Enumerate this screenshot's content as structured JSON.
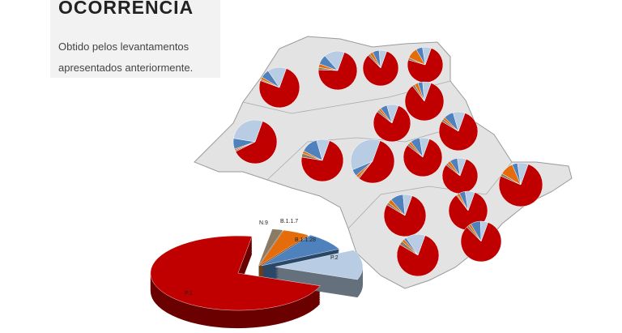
{
  "header": {
    "title": "OCORRÊNCIA",
    "description_lines": [
      "Obtido pelos levantamentos",
      "apresentados anteriormente."
    ]
  },
  "chart_data": [
    {
      "type": "pie",
      "categories": [
        "P.1",
        "N.9",
        "B.1.1.7",
        "B.1.1.28",
        "P.2"
      ],
      "values": [
        72,
        2,
        5,
        8,
        13
      ],
      "colors": [
        "#c00000",
        "#8c7b64",
        "#e46c0a",
        "#4f81bd",
        "#b8cce4"
      ]
    },
    {
      "type": "pie",
      "values": [
        70,
        2,
        3,
        8,
        17
      ]
    },
    {
      "type": "pie",
      "values": [
        82,
        2,
        3,
        6,
        7
      ]
    },
    {
      "type": "pie",
      "values": [
        74,
        2,
        10,
        6,
        8
      ]
    },
    {
      "type": "pie",
      "values": [
        75,
        1,
        2,
        7,
        15
      ]
    },
    {
      "type": "pie",
      "values": [
        84,
        2,
        3,
        4,
        7
      ]
    },
    {
      "type": "pie",
      "values": [
        80,
        2,
        2,
        6,
        10
      ]
    },
    {
      "type": "pie",
      "values": [
        78,
        2,
        2,
        8,
        10
      ]
    },
    {
      "type": "pie",
      "values": [
        62,
        1,
        1,
        8,
        28
      ]
    },
    {
      "type": "pie",
      "values": [
        72,
        3,
        2,
        13,
        10
      ]
    },
    {
      "type": "pie",
      "values": [
        55,
        1,
        2,
        5,
        37
      ]
    },
    {
      "type": "pie",
      "values": [
        80,
        2,
        2,
        8,
        8
      ]
    },
    {
      "type": "pie",
      "values": [
        80,
        2,
        3,
        7,
        8
      ]
    },
    {
      "type": "pie",
      "values": [
        76,
        2,
        10,
        4,
        8
      ]
    },
    {
      "type": "pie",
      "values": [
        84,
        1,
        2,
        5,
        8
      ]
    },
    {
      "type": "pie",
      "values": [
        78,
        2,
        3,
        10,
        7
      ]
    },
    {
      "type": "pie",
      "values": [
        82,
        2,
        2,
        8,
        6
      ]
    },
    {
      "type": "pie",
      "values": [
        78,
        3,
        2,
        2,
        15
      ]
    }
  ]
}
